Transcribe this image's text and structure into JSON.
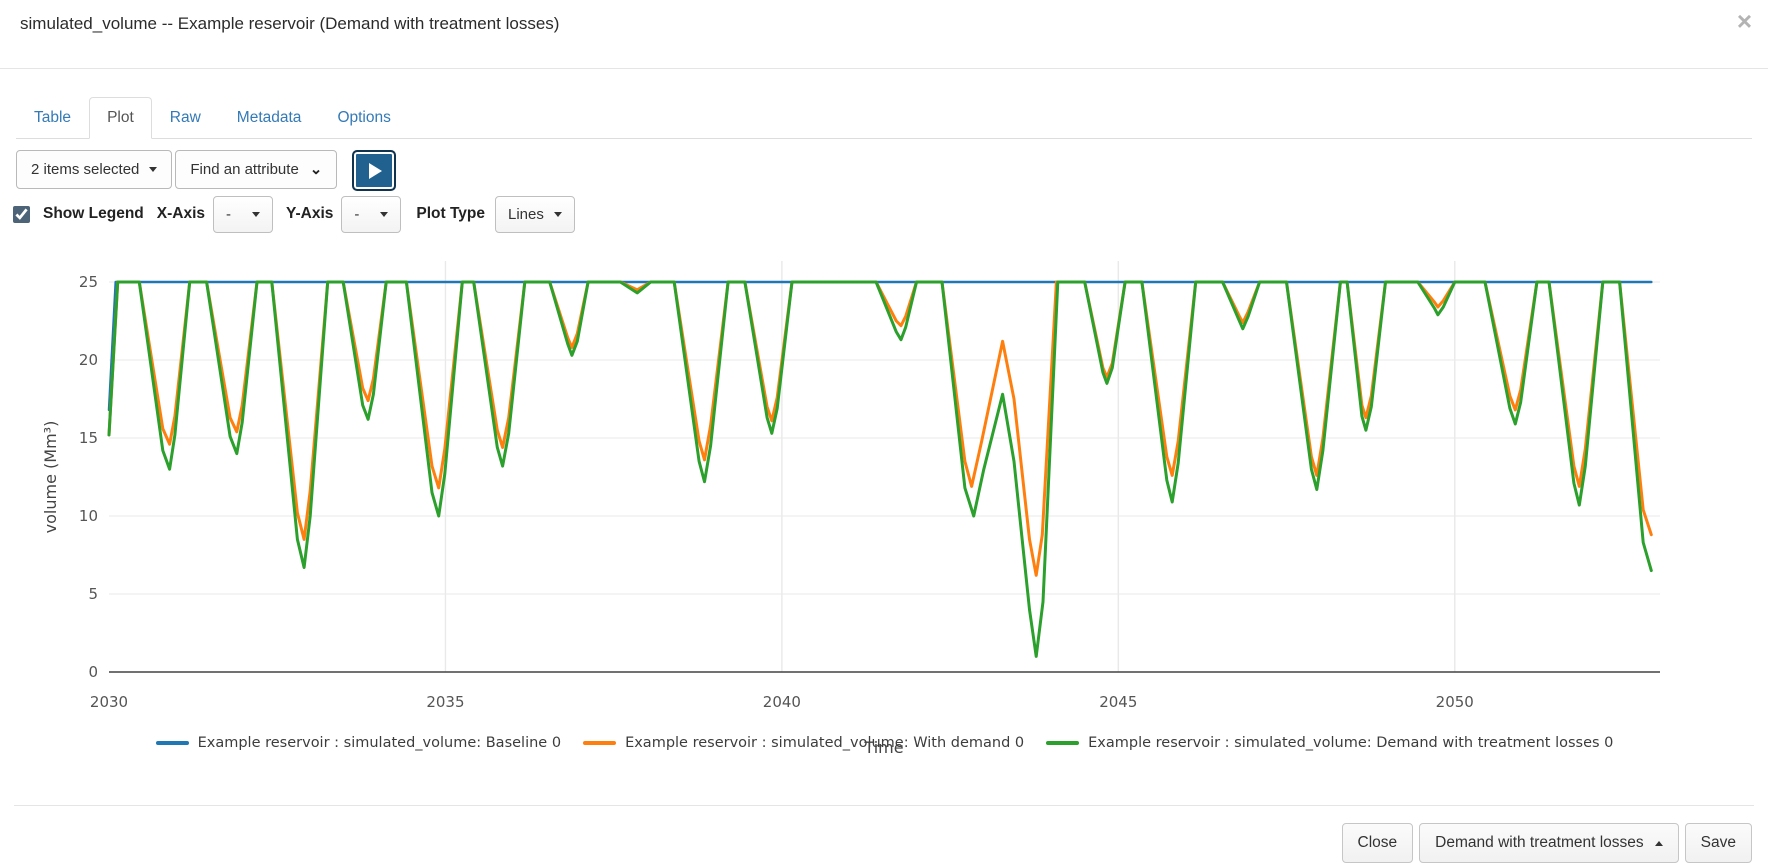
{
  "dialog": {
    "title": "simulated_volume -- Example reservoir (Demand with treatment losses)",
    "close_icon": "×"
  },
  "tabs": [
    {
      "label": "Table",
      "active": false
    },
    {
      "label": "Plot",
      "active": true
    },
    {
      "label": "Raw",
      "active": false
    },
    {
      "label": "Metadata",
      "active": false
    },
    {
      "label": "Options",
      "active": false
    }
  ],
  "toolbar": {
    "items_selected_label": "2 items selected",
    "find_attribute_label": "Find an attribute"
  },
  "plot_controls": {
    "show_legend_label": "Show Legend",
    "show_legend_checked": true,
    "x_axis_label": "X-Axis",
    "x_axis_value": "-",
    "y_axis_label": "Y-Axis",
    "y_axis_value": "-",
    "plot_type_label": "Plot Type",
    "plot_type_value": "Lines"
  },
  "chart_data": {
    "type": "line",
    "xlabel": "Time",
    "ylabel": "volume (Mm³)",
    "xlim": [
      2030,
      2053.05
    ],
    "ylim": [
      0,
      25
    ],
    "x_ticks": [
      2030,
      2035,
      2040,
      2045,
      2050
    ],
    "y_ticks": [
      0,
      5,
      10,
      15,
      20,
      25
    ],
    "grid": true,
    "legend_position": "bottom",
    "series": [
      {
        "name": "Example reservoir : simulated_volume: Baseline 0",
        "color": "#1f77b4",
        "width": 2.5,
        "points": [
          [
            2030.0,
            16.8
          ],
          [
            2030.1,
            25
          ],
          [
            2052.92,
            25
          ]
        ]
      },
      {
        "name": "Example reservoir : simulated_volume: With demand 0",
        "color": "#ff7f0e",
        "width": 3,
        "points": [
          [
            2030.0,
            15.2
          ],
          [
            2030.13,
            25
          ],
          [
            2030.45,
            25
          ],
          [
            2030.8,
            15.6
          ],
          [
            2030.9,
            14.6
          ],
          [
            2030.98,
            16.4
          ],
          [
            2031.2,
            25
          ],
          [
            2031.45,
            25
          ],
          [
            2031.8,
            16.3
          ],
          [
            2031.9,
            15.4
          ],
          [
            2031.98,
            17.1
          ],
          [
            2032.2,
            25
          ],
          [
            2032.42,
            25
          ],
          [
            2032.8,
            10.2
          ],
          [
            2032.9,
            8.5
          ],
          [
            2032.99,
            11.6
          ],
          [
            2033.25,
            25
          ],
          [
            2033.48,
            25
          ],
          [
            2033.77,
            18.2
          ],
          [
            2033.85,
            17.4
          ],
          [
            2033.93,
            18.8
          ],
          [
            2034.12,
            25
          ],
          [
            2034.42,
            25
          ],
          [
            2034.8,
            13.2
          ],
          [
            2034.9,
            11.8
          ],
          [
            2034.99,
            14.3
          ],
          [
            2035.25,
            25
          ],
          [
            2035.42,
            25
          ],
          [
            2035.77,
            15.5
          ],
          [
            2035.85,
            14.4
          ],
          [
            2035.94,
            16.3
          ],
          [
            2036.18,
            25
          ],
          [
            2036.55,
            25
          ],
          [
            2036.82,
            21.4
          ],
          [
            2036.88,
            20.8
          ],
          [
            2036.96,
            21.7
          ],
          [
            2037.12,
            25
          ],
          [
            2037.6,
            25
          ],
          [
            2037.85,
            24.5
          ],
          [
            2038.05,
            25
          ],
          [
            2038.4,
            25
          ],
          [
            2038.77,
            14.8
          ],
          [
            2038.85,
            13.6
          ],
          [
            2038.94,
            15.8
          ],
          [
            2039.2,
            25
          ],
          [
            2039.45,
            25
          ],
          [
            2039.78,
            17.0
          ],
          [
            2039.85,
            16.1
          ],
          [
            2039.93,
            17.6
          ],
          [
            2040.15,
            25
          ],
          [
            2041.4,
            25
          ],
          [
            2041.7,
            22.5
          ],
          [
            2041.77,
            22.2
          ],
          [
            2041.84,
            22.8
          ],
          [
            2042.0,
            25
          ],
          [
            2042.38,
            25
          ],
          [
            2042.72,
            13.5
          ],
          [
            2042.82,
            11.9
          ],
          [
            2042.97,
            14.8
          ],
          [
            2043.28,
            21.2
          ],
          [
            2043.45,
            17.5
          ],
          [
            2043.68,
            8.5
          ],
          [
            2043.78,
            6.2
          ],
          [
            2043.87,
            8.8
          ],
          [
            2044.08,
            25
          ],
          [
            2044.5,
            25
          ],
          [
            2044.77,
            19.5
          ],
          [
            2044.83,
            18.9
          ],
          [
            2044.91,
            19.8
          ],
          [
            2045.1,
            25
          ],
          [
            2045.35,
            25
          ],
          [
            2045.72,
            13.8
          ],
          [
            2045.8,
            12.6
          ],
          [
            2045.89,
            14.8
          ],
          [
            2046.15,
            25
          ],
          [
            2046.55,
            25
          ],
          [
            2046.8,
            22.8
          ],
          [
            2046.85,
            22.4
          ],
          [
            2046.93,
            23.1
          ],
          [
            2047.1,
            25
          ],
          [
            2047.5,
            25
          ],
          [
            2047.87,
            13.8
          ],
          [
            2047.95,
            12.6
          ],
          [
            2048.04,
            15.0
          ],
          [
            2048.3,
            25
          ],
          [
            2048.4,
            25
          ],
          [
            2048.62,
            17.1
          ],
          [
            2048.68,
            16.3
          ],
          [
            2048.76,
            17.7
          ],
          [
            2048.97,
            25
          ],
          [
            2049.45,
            25
          ],
          [
            2049.7,
            23.7
          ],
          [
            2049.75,
            23.4
          ],
          [
            2049.83,
            23.8
          ],
          [
            2050.0,
            25
          ],
          [
            2050.45,
            25
          ],
          [
            2050.82,
            17.7
          ],
          [
            2050.9,
            16.8
          ],
          [
            2050.98,
            18.1
          ],
          [
            2051.22,
            25
          ],
          [
            2051.4,
            25
          ],
          [
            2051.77,
            13.2
          ],
          [
            2051.85,
            11.9
          ],
          [
            2051.94,
            14.3
          ],
          [
            2052.2,
            25
          ],
          [
            2052.45,
            25
          ],
          [
            2052.8,
            10.4
          ],
          [
            2052.92,
            8.8
          ]
        ]
      },
      {
        "name": "Example reservoir : simulated_volume: Demand with treatment losses 0",
        "color": "#2ca02c",
        "width": 3,
        "points": [
          [
            2030.0,
            15.2
          ],
          [
            2030.13,
            25
          ],
          [
            2030.45,
            25
          ],
          [
            2030.8,
            14.2
          ],
          [
            2030.9,
            13.0
          ],
          [
            2030.98,
            15.2
          ],
          [
            2031.2,
            25
          ],
          [
            2031.45,
            25
          ],
          [
            2031.8,
            15.1
          ],
          [
            2031.9,
            14.0
          ],
          [
            2031.98,
            16.0
          ],
          [
            2032.2,
            25
          ],
          [
            2032.42,
            25
          ],
          [
            2032.8,
            8.5
          ],
          [
            2032.9,
            6.7
          ],
          [
            2032.99,
            10.0
          ],
          [
            2033.25,
            25
          ],
          [
            2033.48,
            25
          ],
          [
            2033.77,
            17.1
          ],
          [
            2033.85,
            16.2
          ],
          [
            2033.93,
            17.8
          ],
          [
            2034.12,
            25
          ],
          [
            2034.42,
            25
          ],
          [
            2034.8,
            11.5
          ],
          [
            2034.9,
            10.0
          ],
          [
            2034.99,
            12.7
          ],
          [
            2035.25,
            25
          ],
          [
            2035.42,
            25
          ],
          [
            2035.77,
            14.4
          ],
          [
            2035.85,
            13.2
          ],
          [
            2035.94,
            15.3
          ],
          [
            2036.18,
            25
          ],
          [
            2036.55,
            25
          ],
          [
            2036.82,
            21.0
          ],
          [
            2036.88,
            20.3
          ],
          [
            2036.96,
            21.2
          ],
          [
            2037.12,
            25
          ],
          [
            2037.6,
            25
          ],
          [
            2037.85,
            24.3
          ],
          [
            2038.05,
            25
          ],
          [
            2038.4,
            25
          ],
          [
            2038.77,
            13.5
          ],
          [
            2038.85,
            12.2
          ],
          [
            2038.94,
            14.5
          ],
          [
            2039.2,
            25
          ],
          [
            2039.45,
            25
          ],
          [
            2039.78,
            16.3
          ],
          [
            2039.85,
            15.3
          ],
          [
            2039.93,
            16.9
          ],
          [
            2040.15,
            25
          ],
          [
            2041.4,
            25
          ],
          [
            2041.7,
            21.8
          ],
          [
            2041.77,
            21.3
          ],
          [
            2041.84,
            22.1
          ],
          [
            2042.0,
            25
          ],
          [
            2042.38,
            25
          ],
          [
            2042.72,
            11.8
          ],
          [
            2042.85,
            10.0
          ],
          [
            2043.0,
            13.0
          ],
          [
            2043.28,
            17.8
          ],
          [
            2043.45,
            13.5
          ],
          [
            2043.68,
            4.0
          ],
          [
            2043.78,
            1.0
          ],
          [
            2043.88,
            4.5
          ],
          [
            2044.1,
            25
          ],
          [
            2044.5,
            25
          ],
          [
            2044.77,
            19.2
          ],
          [
            2044.83,
            18.5
          ],
          [
            2044.91,
            19.5
          ],
          [
            2045.1,
            25
          ],
          [
            2045.35,
            25
          ],
          [
            2045.72,
            12.3
          ],
          [
            2045.8,
            10.9
          ],
          [
            2045.89,
            13.4
          ],
          [
            2046.15,
            25
          ],
          [
            2046.55,
            25
          ],
          [
            2046.8,
            22.5
          ],
          [
            2046.85,
            22.0
          ],
          [
            2046.93,
            22.8
          ],
          [
            2047.1,
            25
          ],
          [
            2047.5,
            25
          ],
          [
            2047.87,
            13.0
          ],
          [
            2047.95,
            11.7
          ],
          [
            2048.04,
            14.2
          ],
          [
            2048.3,
            25
          ],
          [
            2048.4,
            25
          ],
          [
            2048.62,
            16.4
          ],
          [
            2048.68,
            15.5
          ],
          [
            2048.76,
            17.0
          ],
          [
            2048.97,
            25
          ],
          [
            2049.45,
            25
          ],
          [
            2049.7,
            23.3
          ],
          [
            2049.75,
            22.9
          ],
          [
            2049.83,
            23.4
          ],
          [
            2050.0,
            25
          ],
          [
            2050.45,
            25
          ],
          [
            2050.82,
            16.9
          ],
          [
            2050.9,
            15.9
          ],
          [
            2050.98,
            17.3
          ],
          [
            2051.22,
            25
          ],
          [
            2051.4,
            25
          ],
          [
            2051.77,
            12.1
          ],
          [
            2051.85,
            10.7
          ],
          [
            2051.94,
            13.2
          ],
          [
            2052.2,
            25
          ],
          [
            2052.45,
            25
          ],
          [
            2052.8,
            8.3
          ],
          [
            2052.92,
            6.5
          ]
        ]
      }
    ]
  },
  "footer": {
    "close_label": "Close",
    "scenario_label": "Demand with treatment losses",
    "save_label": "Save"
  }
}
